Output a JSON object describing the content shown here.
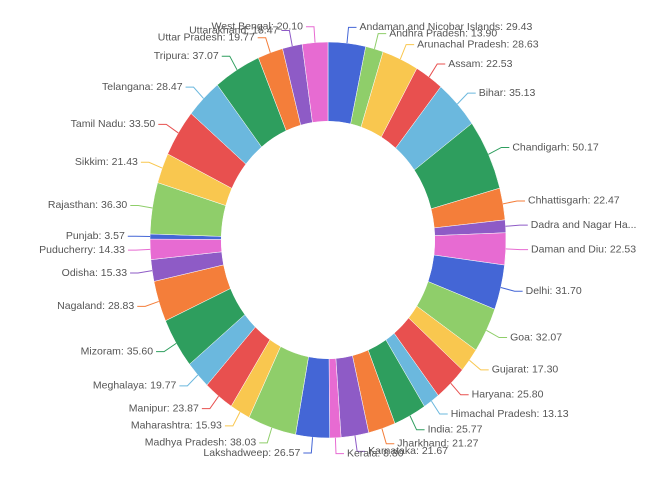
{
  "chart_data": {
    "type": "donut",
    "labels": [
      "Andaman and Nicobar Islands: 29.43",
      "Andhra Pradesh: 13.90",
      "Arunachal Pradesh: 28.63",
      "Assam: 22.53",
      "Bihar: 35.13",
      "Chandigarh: 50.17",
      "Chhattisgarh: 22.47",
      "Dadra and Nagar Ha...",
      "Daman and Diu: 22.53",
      "Delhi: 31.70",
      "Goa: 32.07",
      "Gujarat: 17.30",
      "Haryana: 25.80",
      "Himachal Pradesh: 13.13",
      "India: 25.77",
      "Jharkhand: 21.27",
      "Karnataka: 21.67",
      "Kerala: 8.80",
      "Lakshadweep: 26.57",
      "Madhya Pradesh: 38.03",
      "Maharashtra: 15.93",
      "Manipur: 23.87",
      "Meghalaya: 19.77",
      "Mizoram: 35.60",
      "Nagaland: 28.83",
      "Odisha: 15.33",
      "Puducherry: 14.33",
      "Punjab: 3.57",
      "Rajasthan: 36.30",
      "Sikkim: 21.43",
      "Tamil Nadu: 33.50",
      "Telangana: 28.47",
      "Tripura: 37.07",
      "Uttar Pradesh: 19.77",
      "Uttarakhand: 15.47",
      "West Bengal: 20.10"
    ],
    "values": [
      29.43,
      13.9,
      28.63,
      22.53,
      35.13,
      50.17,
      22.47,
      9,
      22.53,
      31.7,
      32.07,
      17.3,
      25.8,
      13.13,
      25.77,
      21.27,
      21.67,
      8.8,
      26.57,
      38.03,
      15.93,
      23.87,
      19.77,
      35.6,
      28.83,
      15.33,
      14.33,
      3.57,
      36.3,
      21.43,
      33.5,
      28.47,
      37.07,
      19.77,
      15.47,
      20.1
    ],
    "colors": [
      "#4466d6",
      "#8fce6a",
      "#f9c74f",
      "#e8504f",
      "#6bb8de",
      "#2e9e5e",
      "#f47e3a",
      "#8e5bc6",
      "#e76bd2"
    ]
  }
}
